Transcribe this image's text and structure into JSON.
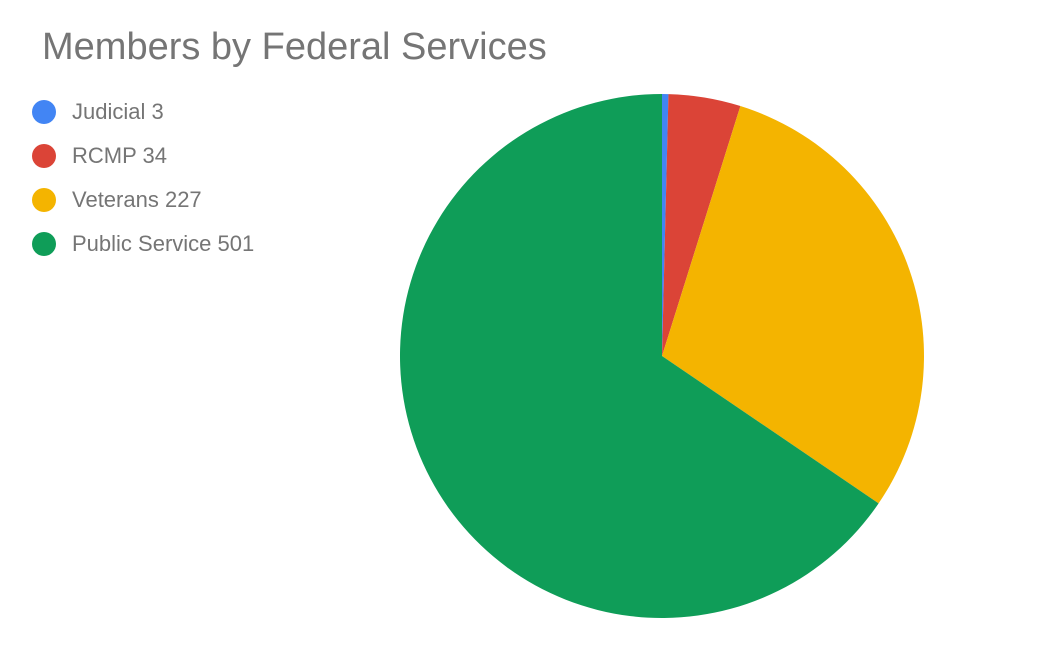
{
  "chart_data": {
    "type": "pie",
    "title": "Members by Federal Services",
    "legend_position": "left",
    "slices": [
      {
        "label": "Judicial 3",
        "value": 3,
        "color": "#4285f4"
      },
      {
        "label": "RCMP 34",
        "value": 34,
        "color": "#db4437"
      },
      {
        "label": "Veterans 227",
        "value": 227,
        "color": "#f4b400"
      },
      {
        "label": "Public Service 501",
        "value": 501,
        "color": "#0f9d58"
      }
    ]
  }
}
